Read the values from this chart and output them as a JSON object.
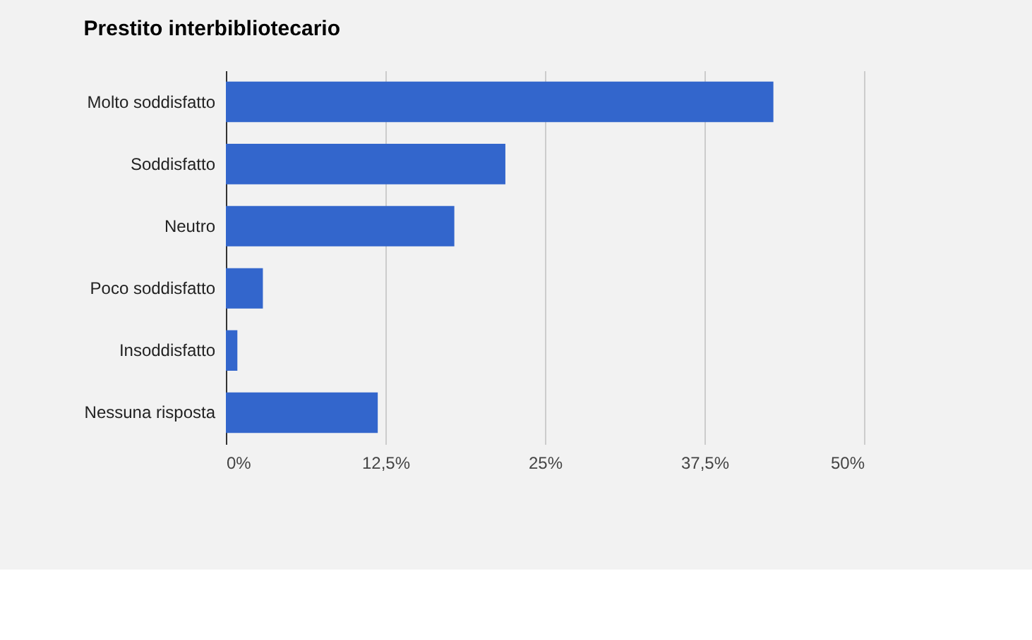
{
  "chart_data": {
    "type": "bar",
    "orientation": "horizontal",
    "title": "Prestito interbibliotecario",
    "categories": [
      "Molto soddisfatto",
      "Soddisfatto",
      "Neutro",
      "Poco soddisfatto",
      "Insoddisfatto",
      "Nessuna risposta"
    ],
    "values": [
      42.9,
      21.9,
      17.9,
      2.9,
      0.9,
      11.9
    ],
    "color": "#3366cc",
    "xlim": [
      0,
      50
    ],
    "xticks": [
      {
        "value": 0,
        "label": "0%"
      },
      {
        "value": 12.5,
        "label": "12,5%"
      },
      {
        "value": 25,
        "label": "25%"
      },
      {
        "value": 37.5,
        "label": "37,5%"
      },
      {
        "value": 50,
        "label": "50%"
      }
    ],
    "grid": "x"
  }
}
